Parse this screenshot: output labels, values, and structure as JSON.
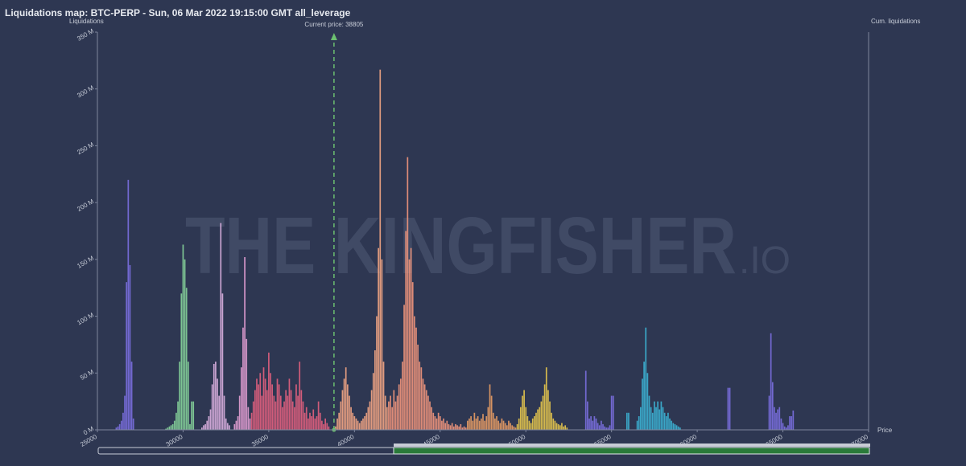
{
  "chart_data": {
    "type": "bar",
    "title": "Liquidations map: BTC-PERP - Sun, 06 Mar 2022 19:15:00 GMT all_leverage",
    "y_label": "Liquidations",
    "y2_label": "Cum. liquidations",
    "x_label": "Price",
    "watermark": "THE KINGFISHER",
    "watermark_suffix": ".IO",
    "annotation": {
      "text": "Current price: 38805",
      "x": 38805,
      "color": "#6cc070"
    },
    "xlim": [
      25000,
      70000
    ],
    "xticks": [
      25000,
      30000,
      35000,
      40000,
      45000,
      50000,
      55000,
      60000,
      65000,
      70000
    ],
    "ylim": [
      0,
      350
    ],
    "yticks": [
      {
        "value": 0,
        "label": "0 M"
      },
      {
        "value": 50,
        "label": "50 M"
      },
      {
        "value": 100,
        "label": "100 M"
      },
      {
        "value": 150,
        "label": "150 M"
      },
      {
        "value": 200,
        "label": "200 M"
      },
      {
        "value": 250,
        "label": "250 M"
      },
      {
        "value": 300,
        "label": "300 M"
      },
      {
        "value": 350,
        "label": "350 M"
      }
    ],
    "series": [
      {
        "color": "#7b6fe0",
        "x": [
          26100,
          26200,
          26300,
          26400,
          26500,
          26600,
          26700,
          26800,
          26900,
          27000,
          27100
        ],
        "values": [
          2,
          3,
          5,
          8,
          15,
          30,
          130,
          220,
          145,
          60,
          10
        ]
      },
      {
        "color": "#86d49a",
        "x": [
          29000,
          29100,
          29200,
          29300,
          29400,
          29500,
          29600,
          29700,
          29800,
          29900,
          30000,
          30100,
          30200,
          30300,
          30400,
          30500,
          30600
        ],
        "values": [
          1,
          2,
          3,
          4,
          5,
          8,
          15,
          25,
          60,
          120,
          163,
          150,
          125,
          60,
          5,
          25,
          25
        ]
      },
      {
        "color": "#dcb0e0",
        "x": [
          31100,
          31200,
          31300,
          31400,
          31500,
          31600,
          31700,
          31800,
          31900,
          32000,
          32100,
          32200,
          32300,
          32400,
          32500,
          32600,
          32700
        ],
        "values": [
          2,
          4,
          5,
          8,
          12,
          18,
          40,
          58,
          60,
          45,
          30,
          182,
          120,
          30,
          10,
          6,
          4
        ]
      },
      {
        "color": "#e4a0d4",
        "x": [
          33000,
          33100,
          33200,
          33300,
          33400,
          33500,
          33600,
          33700,
          33800,
          33900
        ],
        "values": [
          5,
          8,
          12,
          30,
          55,
          90,
          152,
          80,
          20,
          10
        ]
      },
      {
        "color": "#e2617e",
        "x": [
          34000,
          34100,
          34200,
          34300,
          34400,
          34500,
          34600,
          34700,
          34800,
          34900,
          35000,
          35100,
          35200,
          35300,
          35400,
          35500,
          35600,
          35700,
          35800,
          35900,
          36000,
          36100,
          36200,
          36300,
          36400,
          36500,
          36600,
          36700,
          36800,
          36900,
          37000,
          37100,
          37200,
          37300,
          37400,
          37500,
          37600,
          37700,
          37800,
          37900,
          38000,
          38100,
          38200,
          38300,
          38400,
          38500
        ],
        "values": [
          15,
          25,
          35,
          45,
          40,
          50,
          30,
          55,
          45,
          35,
          68,
          50,
          40,
          30,
          25,
          45,
          40,
          30,
          20,
          25,
          35,
          30,
          45,
          35,
          25,
          20,
          40,
          30,
          60,
          35,
          25,
          15,
          20,
          10,
          15,
          12,
          18,
          10,
          12,
          25,
          15,
          8,
          5,
          10,
          6,
          3
        ]
      },
      {
        "color": "#f4a684",
        "x": [
          38900,
          39000,
          39100,
          39200,
          39300,
          39400,
          39500,
          39600,
          39700,
          39800,
          39900,
          40000,
          40100,
          40200,
          40300,
          40400,
          40500,
          40600,
          40700,
          40800,
          40900,
          41000,
          41100,
          41200,
          41300,
          41400,
          41500,
          41600,
          41700,
          41800,
          41900
        ],
        "values": [
          3,
          10,
          15,
          25,
          35,
          45,
          55,
          40,
          30,
          20,
          15,
          12,
          10,
          8,
          6,
          8,
          10,
          12,
          15,
          20,
          25,
          35,
          50,
          70,
          100,
          160,
          317,
          150,
          60,
          30,
          20
        ]
      },
      {
        "color": "#f2967c",
        "x": [
          42000,
          42100,
          42200,
          42300,
          42400,
          42500,
          42600,
          42700,
          42800,
          42900,
          43000,
          43100,
          43200,
          43300,
          43400,
          43500,
          43600,
          43700,
          43800,
          43900,
          44000,
          44100,
          44200,
          44300,
          44400,
          44500,
          44600,
          44700,
          44800,
          44900,
          45000,
          45100,
          45200,
          45300,
          45400,
          45500,
          45600,
          45700,
          45800,
          45900,
          46000,
          46100,
          46200,
          46300,
          46400,
          46500
        ],
        "values": [
          25,
          30,
          20,
          35,
          25,
          30,
          40,
          45,
          60,
          110,
          175,
          240,
          150,
          160,
          130,
          100,
          90,
          75,
          60,
          55,
          45,
          40,
          35,
          30,
          25,
          20,
          15,
          12,
          10,
          15,
          12,
          8,
          10,
          6,
          8,
          5,
          4,
          6,
          3,
          5,
          4,
          3,
          5,
          2,
          3,
          2
        ]
      },
      {
        "color": "#e89c64",
        "x": [
          46600,
          46700,
          46800,
          46900,
          47000,
          47100,
          47200,
          47300,
          47400,
          47500,
          47600,
          47700,
          47800,
          47900,
          48000,
          48100,
          48200,
          48300,
          48400,
          48500,
          48600,
          48700,
          48800,
          48900,
          49000,
          49100,
          49200,
          49300,
          49400
        ],
        "values": [
          8,
          10,
          12,
          8,
          15,
          10,
          12,
          8,
          10,
          14,
          8,
          12,
          20,
          40,
          30,
          15,
          10,
          12,
          8,
          6,
          10,
          8,
          6,
          4,
          8,
          6,
          4,
          3,
          2
        ]
      },
      {
        "color": "#e8c84c",
        "x": [
          49500,
          49600,
          49700,
          49800,
          49900,
          50000,
          50100,
          50200,
          50300,
          50400,
          50500,
          50600,
          50700,
          50800,
          50900,
          51000,
          51100,
          51200,
          51300,
          51400,
          51500,
          51600,
          51700,
          51800,
          51900,
          52000,
          52100,
          52200,
          52300,
          52400
        ],
        "values": [
          5,
          10,
          20,
          30,
          35,
          20,
          12,
          8,
          6,
          10,
          12,
          15,
          18,
          20,
          25,
          30,
          40,
          55,
          35,
          25,
          15,
          10,
          8,
          6,
          5,
          4,
          6,
          3,
          4,
          2
        ]
      },
      {
        "color": "#7b6fe0",
        "x": [
          53500,
          53600,
          53700,
          53800,
          53900,
          54000,
          54100,
          54200,
          54300,
          54400,
          54500,
          54600,
          54700,
          54800,
          54900,
          55000,
          55100
        ],
        "values": [
          52,
          25,
          10,
          12,
          8,
          12,
          10,
          6,
          4,
          8,
          5,
          3,
          2,
          2,
          4,
          30,
          30
        ]
      },
      {
        "color": "#3cb2d4",
        "x": [
          55900,
          56000,
          56500,
          56600,
          56700,
          56800,
          56900,
          57000,
          57100,
          57200,
          57300,
          57400,
          57500,
          57600,
          57700,
          57800,
          57900,
          58000,
          58100,
          58200,
          58300,
          58400,
          58500,
          58600,
          58700,
          58800,
          58900,
          59000
        ],
        "values": [
          15,
          15,
          8,
          12,
          20,
          45,
          60,
          90,
          50,
          30,
          20,
          15,
          25,
          20,
          25,
          18,
          25,
          20,
          15,
          12,
          15,
          10,
          8,
          6,
          5,
          4,
          3,
          2
        ]
      },
      {
        "color": "#7b6fe0",
        "x": [
          61800,
          61900
        ],
        "values": [
          37,
          37
        ]
      },
      {
        "color": "#7b6fe0",
        "x": [
          64200,
          64300,
          64400,
          64500,
          64600,
          64700,
          64800,
          64900,
          65000,
          65100,
          65200,
          65300,
          65400,
          65500,
          65600
        ],
        "values": [
          30,
          85,
          42,
          20,
          15,
          18,
          20,
          10,
          6,
          3,
          2,
          4,
          12,
          12,
          17
        ]
      }
    ]
  }
}
